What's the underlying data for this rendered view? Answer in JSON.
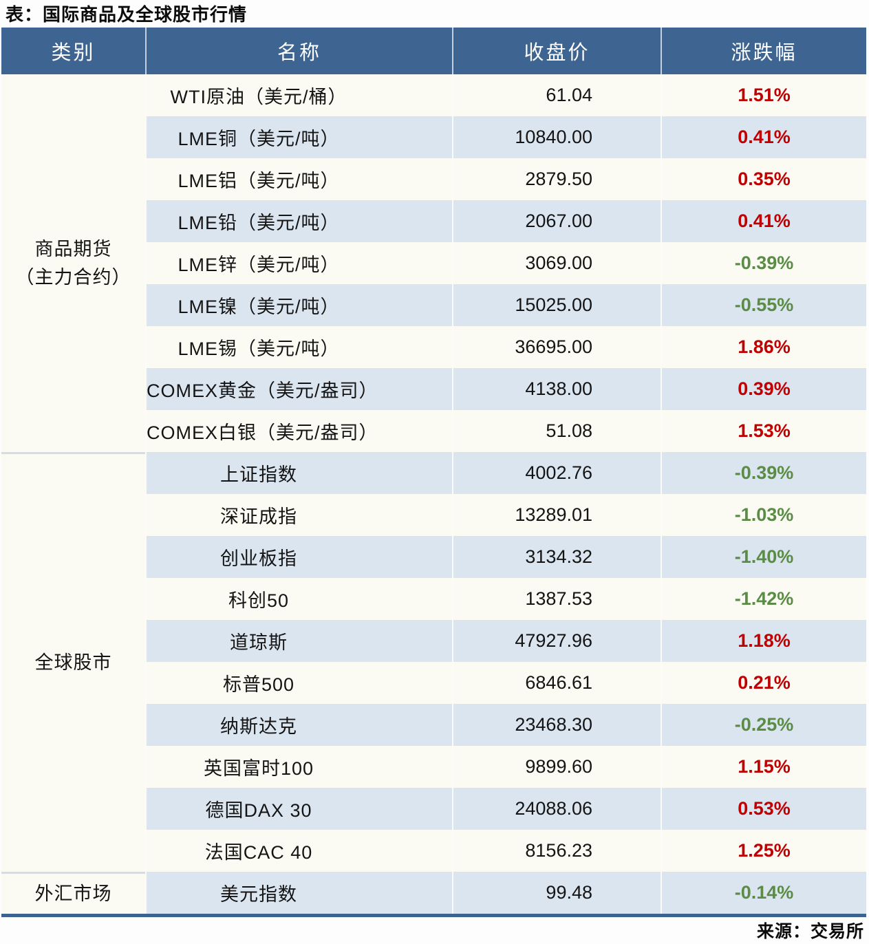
{
  "title": "表：国际商品及全球股市行情",
  "source_label": "来源：交易所",
  "colors": {
    "header_bg": "#3e6492",
    "row_light": "#fbfbf3",
    "row_blue": "#dbe5f0",
    "up_red": "#c00000",
    "down_green": "#5a8c45",
    "bottom_rule": "#3c628f"
  },
  "chart_data": {
    "type": "table",
    "title": "表：国际商品及全球股市行情",
    "columns": [
      "类别",
      "名称",
      "收盘价",
      "涨跌幅"
    ],
    "sections": [
      {
        "category": [
          "商品期货",
          "（主力合约）"
        ],
        "rows": [
          {
            "name": "WTI原油（美元/桶）",
            "close": "61.04",
            "change": "1.51%",
            "direction": "up"
          },
          {
            "name": "LME铜（美元/吨）",
            "close": "10840.00",
            "change": "0.41%",
            "direction": "up"
          },
          {
            "name": "LME铝（美元/吨）",
            "close": "2879.50",
            "change": "0.35%",
            "direction": "up"
          },
          {
            "name": "LME铅（美元/吨）",
            "close": "2067.00",
            "change": "0.41%",
            "direction": "up"
          },
          {
            "name": "LME锌（美元/吨）",
            "close": "3069.00",
            "change": "-0.39%",
            "direction": "down"
          },
          {
            "name": "LME镍（美元/吨）",
            "close": "15025.00",
            "change": "-0.55%",
            "direction": "down"
          },
          {
            "name": "LME锡（美元/吨）",
            "close": "36695.00",
            "change": "1.86%",
            "direction": "up"
          },
          {
            "name": "COMEX黄金（美元/盎司）",
            "close": "4138.00",
            "change": "0.39%",
            "direction": "up"
          },
          {
            "name": "COMEX白银（美元/盎司）",
            "close": "51.08",
            "change": "1.53%",
            "direction": "up"
          }
        ]
      },
      {
        "category": [
          "全球股市"
        ],
        "rows": [
          {
            "name": "上证指数",
            "close": "4002.76",
            "change": "-0.39%",
            "direction": "down"
          },
          {
            "name": "深证成指",
            "close": "13289.01",
            "change": "-1.03%",
            "direction": "down"
          },
          {
            "name": "创业板指",
            "close": "3134.32",
            "change": "-1.40%",
            "direction": "down"
          },
          {
            "name": "科创50",
            "close": "1387.53",
            "change": "-1.42%",
            "direction": "down"
          },
          {
            "name": "道琼斯",
            "close": "47927.96",
            "change": "1.18%",
            "direction": "up"
          },
          {
            "name": "标普500",
            "close": "6846.61",
            "change": "0.21%",
            "direction": "up"
          },
          {
            "name": "纳斯达克",
            "close": "23468.30",
            "change": "-0.25%",
            "direction": "down"
          },
          {
            "name": "英国富时100",
            "close": "9899.60",
            "change": "1.15%",
            "direction": "up"
          },
          {
            "name": "德国DAX 30",
            "close": "24088.06",
            "change": "0.53%",
            "direction": "up"
          },
          {
            "name": "法国CAC 40",
            "close": "8156.23",
            "change": "1.25%",
            "direction": "up"
          }
        ]
      },
      {
        "category": [
          "外汇市场"
        ],
        "rows": [
          {
            "name": "美元指数",
            "close": "99.48",
            "change": "-0.14%",
            "direction": "down"
          }
        ]
      }
    ]
  }
}
